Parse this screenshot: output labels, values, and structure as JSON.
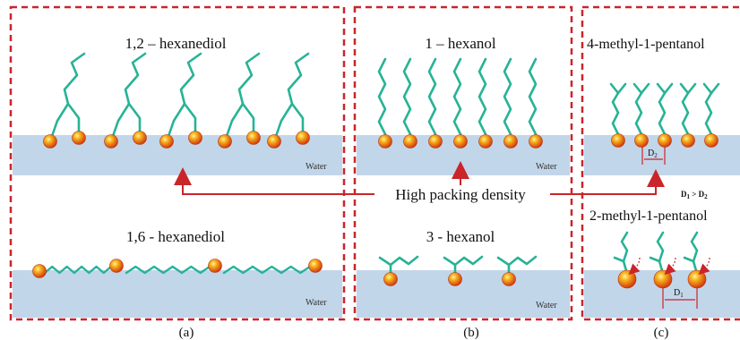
{
  "colors": {
    "panel_border": "#c9252b",
    "water": "#c2d6ea",
    "chain": "#27b395",
    "ball_core": "#f7b21c",
    "ball_edge": "#d23a10",
    "arrow": "#c9252b"
  },
  "panel_a": {
    "label": "(a)",
    "top_title": "1,2 – hexanediol",
    "bottom_title": "1,6 - hexanediol",
    "water_top": "Water",
    "water_bottom": "Water"
  },
  "panel_b": {
    "label": "(b)",
    "top_title": "1 – hexanol",
    "bottom_title": "3 - hexanol",
    "water_top": "Water",
    "water_bottom": "Water"
  },
  "panel_c": {
    "label": "(c)",
    "top_title": "4-methyl-1-pentanol",
    "bottom_title": "2-methyl-1-pentanol",
    "d2": "D",
    "d2_sub": "2",
    "d1": "D",
    "d1_sub": "1",
    "comparison": "D",
    "comparison_sub1": "1",
    "comparison_op": " > ",
    "comparison_sub2": "2"
  },
  "center_label": "High packing density",
  "icons": [
    "hydroxyl-head-ball",
    "alkyl-chain",
    "water-layer",
    "red-arrow"
  ]
}
